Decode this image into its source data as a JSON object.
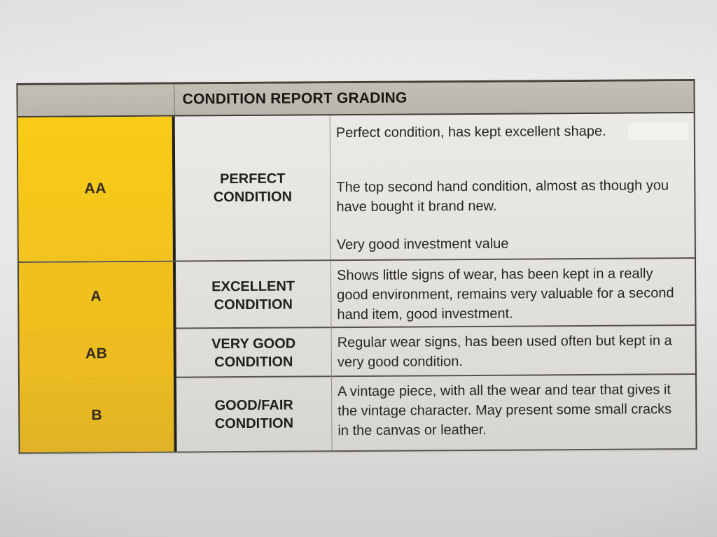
{
  "table": {
    "title": "CONDITION REPORT GRADING",
    "colors": {
      "header_bg": "#bcb7ae",
      "grade_column_yellow": "#f2c41d",
      "cell_bg": "#e6e4e0",
      "text": "#21201c",
      "border_dark": "#3e3b34"
    },
    "rows": [
      {
        "grade": "AA",
        "label_line1": "PERFECT",
        "label_line2": "CONDITION",
        "paragraphs": [
          "Perfect condition, has kept excellent shape.",
          "The top second hand condition, almost as though you have bought it brand new.",
          "Very good investment value"
        ]
      },
      {
        "grade": "A",
        "label_line1": "EXCELLENT",
        "label_line2": "CONDITION",
        "paragraphs": [
          "Shows little signs of wear, has been kept in a really good environment, remains very valuable for a second hand item, good investment."
        ]
      },
      {
        "grade": "AB",
        "label_line1": "VERY GOOD",
        "label_line2": "CONDITION",
        "paragraphs": [
          "Regular wear signs, has been used often but kept in a very good condition."
        ]
      },
      {
        "grade": "B",
        "label_line1": "GOOD/FAIR",
        "label_line2": "CONDITION",
        "paragraphs": [
          "A vintage piece, with all the wear and tear that gives it the vintage character. May present some small cracks in the canvas or leather."
        ]
      }
    ]
  }
}
